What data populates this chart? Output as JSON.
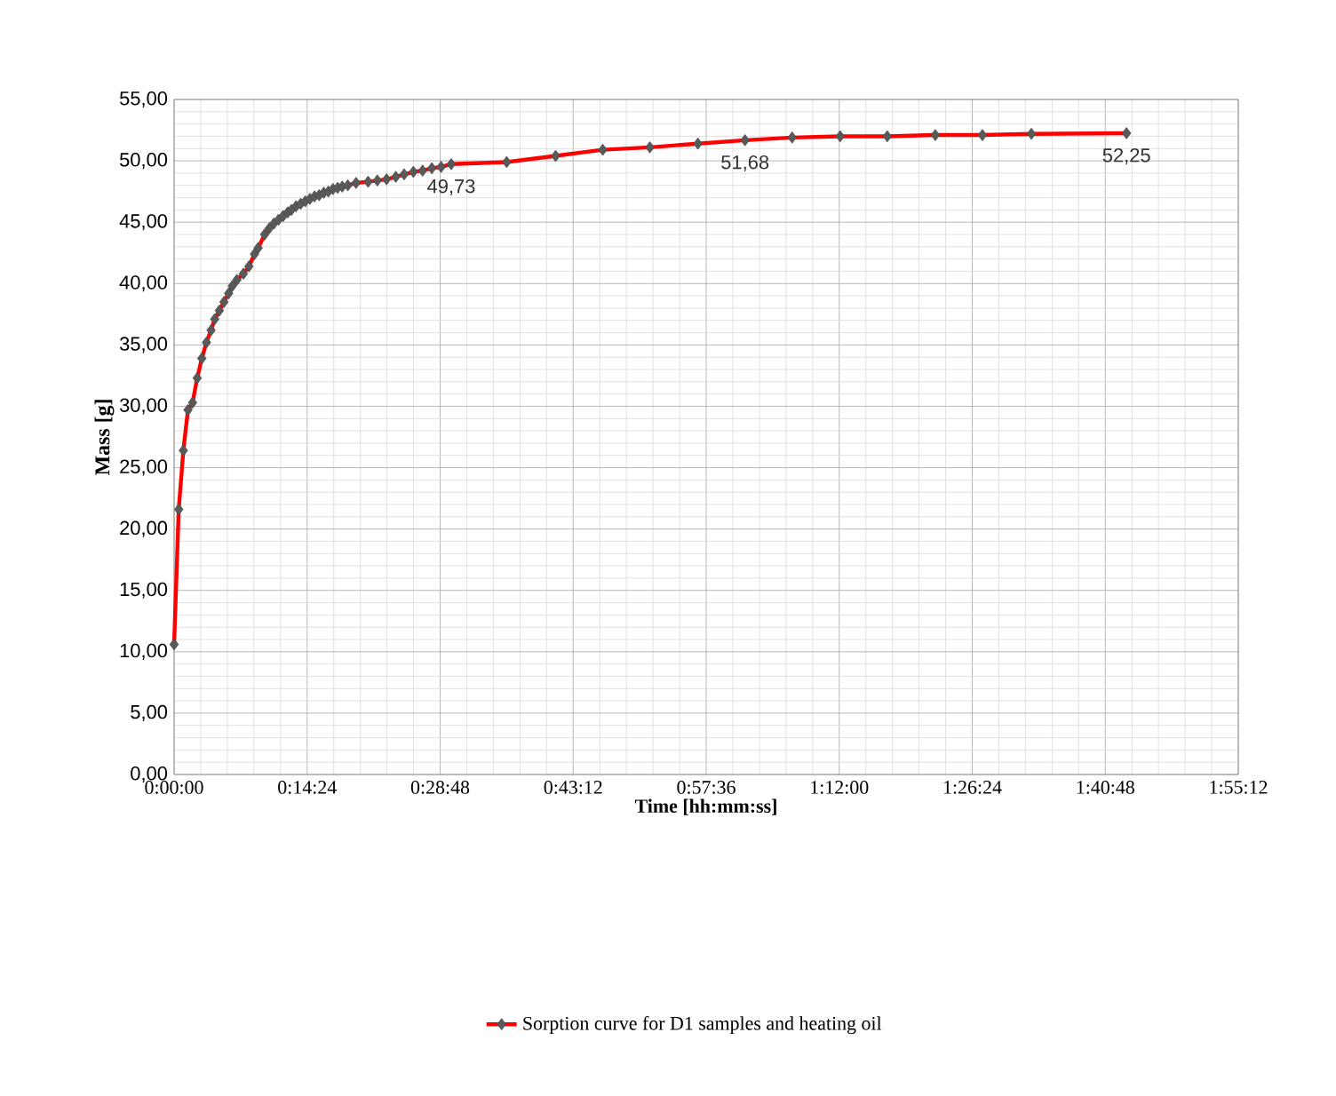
{
  "chart_data": {
    "type": "line",
    "xlabel": "Time [hh:mm:ss]",
    "ylabel": "Mass [g]",
    "xlim": [
      0,
      115.2
    ],
    "xticks": [
      {
        "value": 0,
        "label": "0:00:00"
      },
      {
        "value": 14.4,
        "label": "0:14:24"
      },
      {
        "value": 28.8,
        "label": "0:28:48"
      },
      {
        "value": 43.2,
        "label": "0:43:12"
      },
      {
        "value": 57.6,
        "label": "0:57:36"
      },
      {
        "value": 72,
        "label": "1:12:00"
      },
      {
        "value": 86.4,
        "label": "1:26:24"
      },
      {
        "value": 100.8,
        "label": "1:40:48"
      },
      {
        "value": 115.2,
        "label": "1:55:12"
      }
    ],
    "ylim": [
      0,
      55
    ],
    "yticks": [
      {
        "value": 0,
        "label": "0,00"
      },
      {
        "value": 5,
        "label": "5,00"
      },
      {
        "value": 10,
        "label": "10,00"
      },
      {
        "value": 15,
        "label": "15,00"
      },
      {
        "value": 20,
        "label": "20,00"
      },
      {
        "value": 25,
        "label": "25,00"
      },
      {
        "value": 30,
        "label": "30,00"
      },
      {
        "value": 35,
        "label": "35,00"
      },
      {
        "value": 40,
        "label": "40,00"
      },
      {
        "value": 45,
        "label": "45,00"
      },
      {
        "value": 50,
        "label": "50,00"
      },
      {
        "value": 55,
        "label": "55,00"
      }
    ],
    "grid": true,
    "legend": "bottom",
    "marker": "diamond",
    "line_style": "solid",
    "series": [
      {
        "name": "Sorption curve for D1 samples and heating oil",
        "color": "#ff0000",
        "x": [
          0,
          0.5,
          1.0,
          1.5,
          2.0,
          2.5,
          3.0,
          3.5,
          4.0,
          4.4,
          4.9,
          5.4,
          5.9,
          6.3,
          6.8,
          7.5,
          8.1,
          8.7,
          9.1,
          9.8,
          10.3,
          10.8,
          11.3,
          11.8,
          12.3,
          12.7,
          13.2,
          13.7,
          14.2,
          14.7,
          15.2,
          15.7,
          16.2,
          16.7,
          17.2,
          17.7,
          18.2,
          18.8,
          19.7,
          21.0,
          22.0,
          23.0,
          24.0,
          24.9,
          25.9,
          26.9,
          27.9,
          28.9,
          30.0,
          36.0,
          41.3,
          46.4,
          51.5,
          56.7,
          61.8,
          66.9,
          72.1,
          77.2,
          82.4,
          87.5,
          92.8,
          103.1
        ],
        "values": [
          10.6,
          21.6,
          26.4,
          29.7,
          30.3,
          32.3,
          33.9,
          35.2,
          36.2,
          37.1,
          37.8,
          38.5,
          39.2,
          39.8,
          40.3,
          40.8,
          41.4,
          42.4,
          42.9,
          44.0,
          44.5,
          44.9,
          45.2,
          45.5,
          45.8,
          46.0,
          46.3,
          46.5,
          46.7,
          46.9,
          47.1,
          47.2,
          47.4,
          47.5,
          47.7,
          47.8,
          47.9,
          48.0,
          48.2,
          48.3,
          48.4,
          48.5,
          48.7,
          48.9,
          49.1,
          49.2,
          49.4,
          49.5,
          49.73,
          49.9,
          50.4,
          50.9,
          51.1,
          51.4,
          51.68,
          51.9,
          52.0,
          52.0,
          52.1,
          52.1,
          52.2,
          52.25
        ],
        "value_labels": [
          null,
          null,
          null,
          null,
          null,
          null,
          null,
          null,
          null,
          null,
          null,
          null,
          null,
          null,
          null,
          null,
          null,
          null,
          null,
          null,
          null,
          null,
          null,
          null,
          null,
          null,
          null,
          null,
          null,
          null,
          null,
          null,
          null,
          null,
          null,
          null,
          null,
          null,
          null,
          null,
          null,
          null,
          null,
          null,
          null,
          null,
          null,
          null,
          "49,73",
          null,
          null,
          null,
          null,
          null,
          "51,68",
          null,
          null,
          null,
          null,
          null,
          null,
          "52,25"
        ]
      }
    ]
  }
}
